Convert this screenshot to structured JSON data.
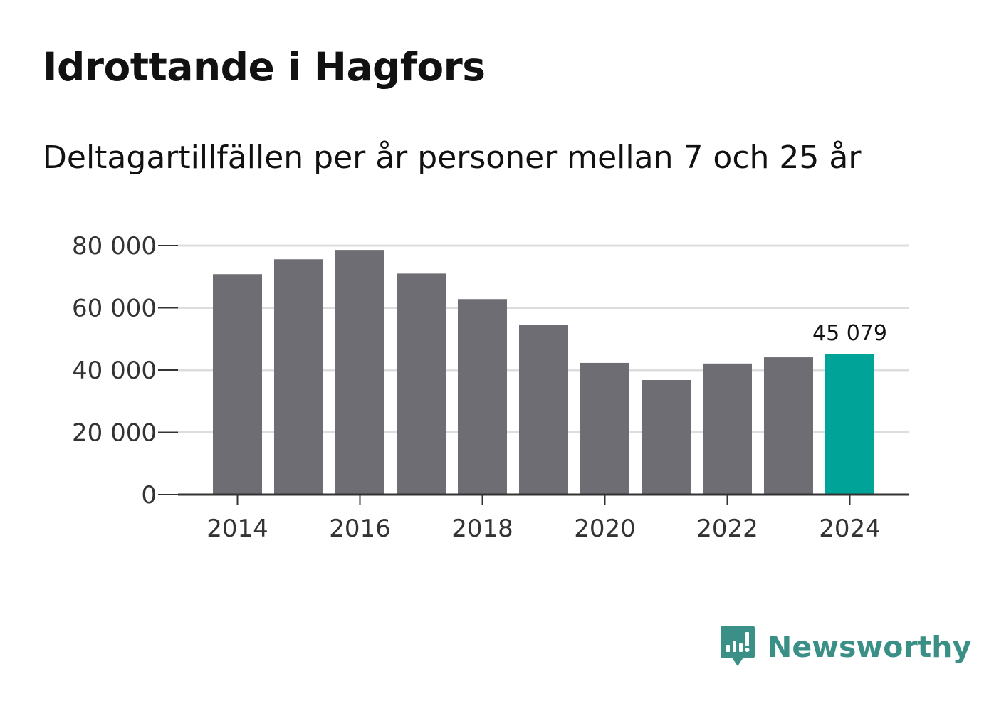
{
  "title": "Idrottande i Hagfors",
  "subtitle": "Deltagartillfällen per år personer mellan 7 och 25 år",
  "brand": {
    "name": "Newsworthy",
    "icon": "newsworthy-logo-icon",
    "color": "#3a8f86"
  },
  "colors": {
    "bar": "#6e6d73",
    "highlight": "#00a397",
    "grid": "#dddddd",
    "axis": "#333333"
  },
  "chart_data": {
    "type": "bar",
    "title": "Idrottande i Hagfors",
    "subtitle": "Deltagartillfällen per år personer mellan 7 och 25 år",
    "xlabel": "",
    "ylabel": "",
    "categories": [
      2014,
      2015,
      2016,
      2017,
      2018,
      2019,
      2020,
      2021,
      2022,
      2023,
      2024
    ],
    "values": [
      70800,
      75600,
      78600,
      71000,
      62800,
      54400,
      42300,
      36800,
      42100,
      44100,
      45079
    ],
    "highlight_index": 10,
    "ylim": [
      0,
      80000
    ],
    "yticks": [
      0,
      20000,
      40000,
      60000,
      80000
    ],
    "ytick_labels": [
      "0",
      "20 000",
      "40 000",
      "60 000",
      "80 000"
    ],
    "xtick_labels": [
      "2014",
      "2016",
      "2018",
      "2020",
      "2022",
      "2024"
    ],
    "xtick_values": [
      2014,
      2016,
      2018,
      2020,
      2022,
      2024
    ],
    "annotation": {
      "category": 2024,
      "text": "45 079"
    },
    "grid": true
  }
}
